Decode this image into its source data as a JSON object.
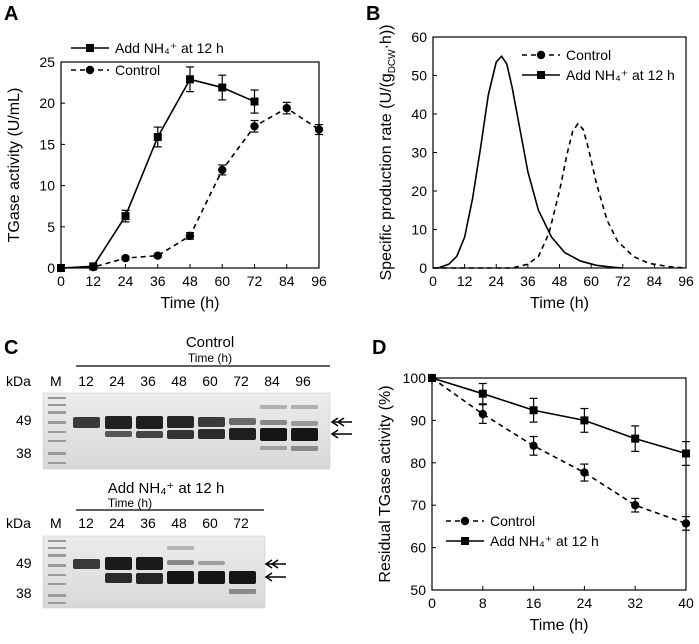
{
  "panels": {
    "A": {
      "letter": "A"
    },
    "B": {
      "letter": "B"
    },
    "C": {
      "letter": "C"
    },
    "D": {
      "letter": "D"
    }
  },
  "chart_data": [
    {
      "id": "A",
      "type": "line",
      "xlabel": "Time (h)",
      "ylabel": "TGase activity (U/mL)",
      "xlim": [
        0,
        96
      ],
      "ylim": [
        0,
        25
      ],
      "xticks": [
        0,
        12,
        24,
        36,
        48,
        60,
        72,
        84,
        96
      ],
      "yticks": [
        0,
        5,
        10,
        15,
        20,
        25
      ],
      "legend_position": "top-left",
      "series": [
        {
          "name": "Add NH₄⁺ at 12 h",
          "marker": "square",
          "dash": "solid",
          "x": [
            0,
            12,
            24,
            36,
            48,
            60,
            72
          ],
          "y": [
            0,
            0.2,
            6.3,
            15.9,
            22.9,
            21.9,
            20.2
          ],
          "err": [
            0,
            0.2,
            0.7,
            1.2,
            1.5,
            1.5,
            1.4
          ]
        },
        {
          "name": "Control",
          "marker": "circle",
          "dash": "dashed",
          "x": [
            0,
            12,
            24,
            36,
            48,
            60,
            72,
            84,
            96
          ],
          "y": [
            0,
            0.1,
            1.2,
            1.5,
            3.9,
            11.9,
            17.2,
            19.4,
            16.8
          ],
          "err": [
            0,
            0.1,
            0.2,
            0.2,
            0.4,
            0.6,
            0.7,
            0.7,
            0.6
          ]
        }
      ]
    },
    {
      "id": "B",
      "type": "line",
      "xlabel": "Time (h)",
      "ylabel_main": "Specific production rate (U/(g",
      "ylabel_sub": "DCW",
      "ylabel_end": "·h))",
      "xlim": [
        0,
        96
      ],
      "ylim": [
        0,
        60
      ],
      "xticks": [
        0,
        12,
        24,
        36,
        48,
        60,
        72,
        84,
        96
      ],
      "yticks": [
        0,
        10,
        20,
        30,
        40,
        50,
        60
      ],
      "legend_position": "top-right",
      "series": [
        {
          "name": "Control",
          "marker": "circle",
          "dash": "dashed",
          "x": [
            0,
            30,
            36,
            40,
            44,
            48,
            51,
            53,
            55,
            57,
            59,
            62,
            66,
            70,
            76,
            82,
            90,
            96
          ],
          "y": [
            0,
            0,
            1,
            3,
            9,
            20,
            30,
            35.5,
            37.5,
            36,
            31,
            22,
            12.5,
            7,
            3,
            1.2,
            0.3,
            0
          ]
        },
        {
          "name": "Add NH₄⁺ at 12 h",
          "marker": "square",
          "dash": "solid",
          "x": [
            0,
            2,
            6,
            9,
            12,
            15,
            18,
            21,
            24,
            26,
            28,
            30,
            33,
            36,
            40,
            45,
            50,
            56,
            62,
            68,
            72
          ],
          "y": [
            0,
            0,
            1,
            3,
            8,
            18,
            31,
            45,
            53.5,
            55,
            53,
            47,
            36,
            25,
            15,
            8,
            4,
            1.8,
            0.7,
            0.2,
            0
          ]
        }
      ]
    },
    {
      "id": "D",
      "type": "line",
      "xlabel": "Time (h)",
      "ylabel": "Residual TGase activity (%)",
      "xlim": [
        0,
        40
      ],
      "ylim": [
        50,
        100
      ],
      "xticks": [
        0,
        8,
        16,
        24,
        32,
        40
      ],
      "yticks": [
        50,
        60,
        70,
        80,
        90,
        100
      ],
      "legend_position": "bottom-left",
      "series": [
        {
          "name": "Control",
          "marker": "circle",
          "dash": "dashed",
          "x": [
            0,
            8,
            16,
            24,
            32,
            40
          ],
          "y": [
            100,
            91.5,
            84,
            77.7,
            70,
            65.7
          ],
          "err": [
            0,
            2.2,
            2.2,
            2,
            1.6,
            1.6
          ]
        },
        {
          "name": "Add NH₄⁺ at 12 h",
          "marker": "square",
          "dash": "solid",
          "x": [
            0,
            8,
            16,
            24,
            32,
            40
          ],
          "y": [
            100,
            96.3,
            92.4,
            90,
            85.7,
            82.2
          ],
          "err": [
            0,
            2.4,
            2.8,
            2.8,
            3,
            2.8
          ]
        }
      ]
    }
  ],
  "gels": {
    "control": {
      "title": "Control",
      "time_label": "Time (h)",
      "kda_label": "kDa",
      "marker_lane": "M",
      "lanes": [
        "12",
        "24",
        "36",
        "48",
        "60",
        "72",
        "84",
        "96"
      ],
      "mw_markers": [
        "49",
        "38"
      ]
    },
    "nh4": {
      "title": "Add NH₄⁺ at 12 h",
      "time_label": "Time (h)",
      "kda_label": "kDa",
      "marker_lane": "M",
      "lanes": [
        "12",
        "24",
        "36",
        "48",
        "60",
        "72"
      ],
      "mw_markers": [
        "49",
        "38"
      ]
    }
  }
}
